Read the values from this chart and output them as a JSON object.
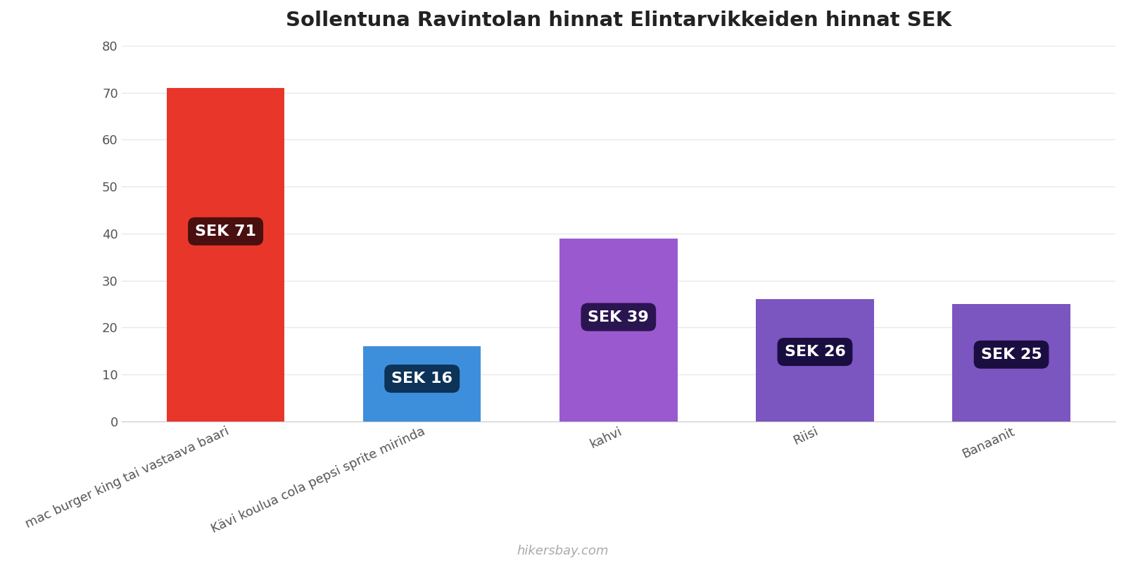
{
  "title": "Sollentuna Ravintolan hinnat Elintarvikkeiden hinnat SEK",
  "categories": [
    "mac burger king tai vastaava baari",
    "Kävi koulua cola pepsi sprite mirinda",
    "kahvi",
    "Riisi",
    "Banaanit"
  ],
  "values": [
    71,
    16,
    39,
    26,
    25
  ],
  "bar_colors": [
    "#e8372a",
    "#3d8fdb",
    "#9b59d0",
    "#7b55c0",
    "#7b55c0"
  ],
  "label_texts": [
    "SEK 71",
    "SEK 16",
    "SEK 39",
    "SEK 26",
    "SEK 25"
  ],
  "label_bg_colors": [
    "#4a1010",
    "#0d3358",
    "#2a1550",
    "#1a0e40",
    "#1a0e40"
  ],
  "ylim": [
    0,
    80
  ],
  "yticks": [
    0,
    10,
    20,
    30,
    40,
    50,
    60,
    70,
    80
  ],
  "background_color": "#ffffff",
  "grid_color": "#e8e8e8",
  "title_fontsize": 21,
  "tick_fontsize": 13,
  "label_fontsize": 16,
  "watermark": "hikersbay.com",
  "bar_width": 0.6
}
